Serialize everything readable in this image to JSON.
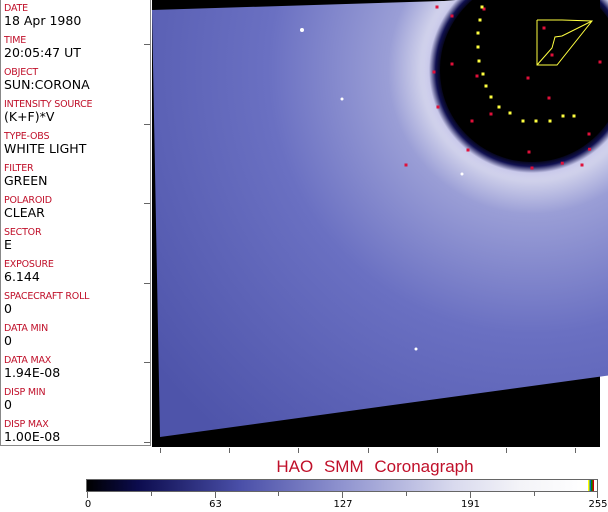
{
  "info_fields": [
    {
      "label": "DATE",
      "value": "18 Apr 1980"
    },
    {
      "label": "TIME",
      "value": "20:05:47 UT"
    },
    {
      "label": "OBJECT",
      "value": "SUN:CORONA"
    },
    {
      "label": "INTENSITY SOURCE",
      "value": "(K+F)*V"
    },
    {
      "label": "TYPE-OBS",
      "value": "WHITE LIGHT"
    },
    {
      "label": "FILTER",
      "value": "GREEN"
    },
    {
      "label": "POLAROID",
      "value": "CLEAR"
    },
    {
      "label": "SECTOR",
      "value": "E"
    },
    {
      "label": "EXPOSURE",
      "value": "6.144"
    },
    {
      "label": "SPACECRAFT ROLL",
      "value": "0"
    },
    {
      "label": "DATA MIN",
      "value": "0"
    },
    {
      "label": "DATA MAX",
      "value": "1.94E-08"
    },
    {
      "label": "DISP MIN",
      "value": "0"
    },
    {
      "label": "DISP MAX",
      "value": "1.00E-08"
    }
  ],
  "title": "HAO SMM Coronagraph",
  "colorbar": {
    "ticks": [
      "0",
      "63",
      "127",
      "191",
      "255"
    ],
    "min": 0,
    "max": 255
  },
  "colors": {
    "label": "#c0102a",
    "corona": "#5a60b8",
    "marker_red": "#e0103a",
    "marker_yellow": "#ffff40"
  }
}
